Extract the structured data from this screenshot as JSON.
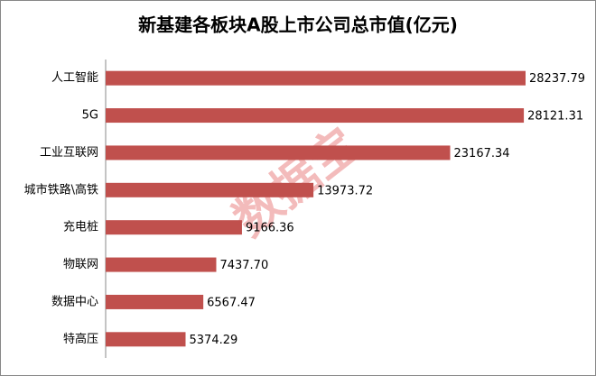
{
  "chart_data": {
    "type": "bar",
    "orientation": "horizontal",
    "title": "新基建各板块A股上市公司总市值(亿元)",
    "watermark": "数据宝",
    "categories": [
      "人工智能",
      "5G",
      "工业互联网",
      "城市铁路\\高铁",
      "充电桩",
      "物联网",
      "数据中心",
      "特高压"
    ],
    "values": [
      28237.79,
      28121.31,
      23167.34,
      13973.72,
      9166.36,
      7437.7,
      6567.47,
      5374.29
    ],
    "value_labels": [
      "28237.79",
      "28121.31",
      "23167.34",
      "13973.72",
      "9166.36",
      "7437.70",
      "6567.47",
      "5374.29"
    ],
    "color": "#c0504d"
  }
}
